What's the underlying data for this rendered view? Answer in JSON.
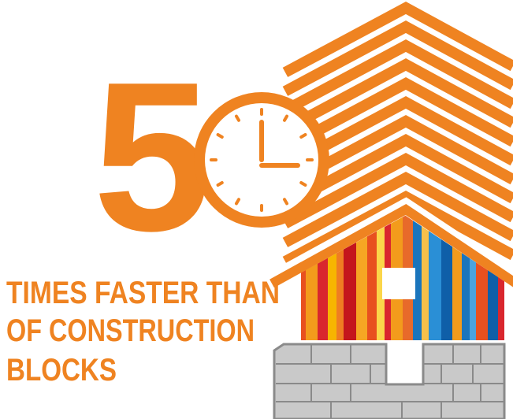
{
  "digit": "5",
  "caption": [
    "TIMES FASTER THAN",
    "OF CONSTRUCTION",
    "BLOCKS"
  ]
}
